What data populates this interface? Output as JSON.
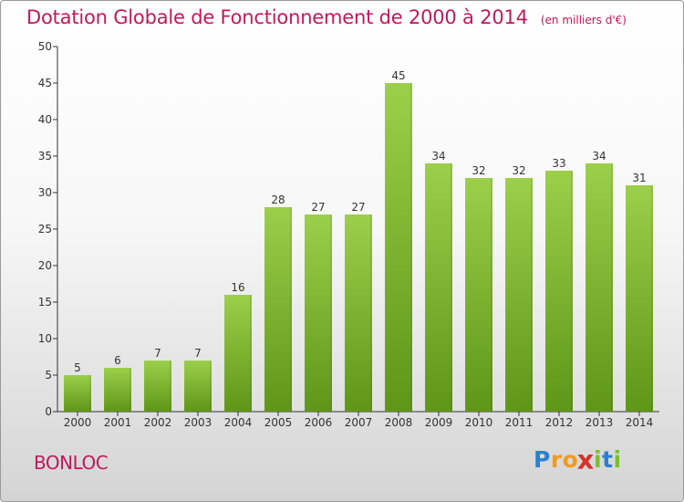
{
  "chart_data": {
    "type": "bar",
    "title": "Dotation Globale de Fonctionnement de 2000 à 2014",
    "unit_label": "(en milliers d'€)",
    "categories": [
      "2000",
      "2001",
      "2002",
      "2003",
      "2004",
      "2005",
      "2006",
      "2007",
      "2008",
      "2009",
      "2010",
      "2011",
      "2012",
      "2013",
      "2014"
    ],
    "values": [
      5,
      6,
      7,
      7,
      16,
      28,
      27,
      27,
      45,
      34,
      32,
      32,
      33,
      34,
      31
    ],
    "y_ticks": [
      0,
      5,
      10,
      15,
      20,
      25,
      30,
      35,
      40,
      45,
      50
    ],
    "ylim": [
      0,
      50
    ],
    "grid": false,
    "bar_color_top": "#9ccf4a",
    "bar_color_bottom": "#5f9618"
  },
  "commune": "BONLOC",
  "logo": {
    "text": "Proxiti",
    "letters": [
      {
        "ch": "P",
        "color": "#2a7fd4"
      },
      {
        "ch": "r",
        "color": "#f39a1e"
      },
      {
        "ch": "o",
        "color": "#f39a1e"
      },
      {
        "ch": "x",
        "color": "#d9302c"
      },
      {
        "ch": "i",
        "color": "#7cbf2c"
      },
      {
        "ch": "t",
        "color": "#2a7fd4"
      },
      {
        "ch": "i",
        "color": "#7cbf2c"
      }
    ]
  },
  "colors": {
    "accent": "#c2185b",
    "axis": "#333333"
  }
}
